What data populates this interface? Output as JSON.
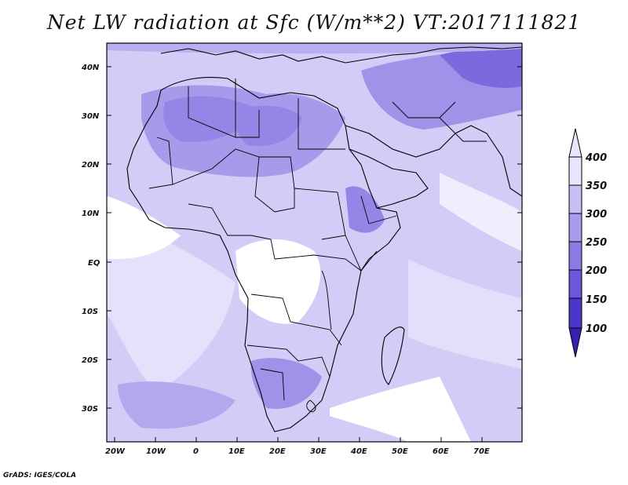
{
  "title": "Net LW radiation at Sfc (W/m**2)  VT:2017111821",
  "footer": "GrADS: IGES/COLA",
  "map": {
    "lon_labels": [
      "20W",
      "10W",
      "0",
      "10E",
      "20E",
      "30E",
      "40E",
      "50E",
      "60E",
      "70E"
    ],
    "lat_labels": [
      "40N",
      "30N",
      "20N",
      "10N",
      "EQ",
      "10S",
      "20S",
      "30S"
    ],
    "lon_range": [
      -22,
      80
    ],
    "lat_range": [
      -37,
      45
    ]
  },
  "colorbar": {
    "levels": [
      "100",
      "150",
      "200",
      "250",
      "300",
      "350",
      "400"
    ],
    "colors": [
      "#3a1fb0",
      "#4a36c8",
      "#6a58d8",
      "#8a7ae2",
      "#a89cec",
      "#c8c0f4",
      "#e8e6fc"
    ]
  },
  "colors": {
    "background": "#ffffff",
    "land_outline": "#000000",
    "level_300_350": "#a89cec",
    "level_350_400": "#c8c0f4",
    "level_400_plus": "#e8e6fc",
    "level_250_300": "#8a7ae2"
  }
}
